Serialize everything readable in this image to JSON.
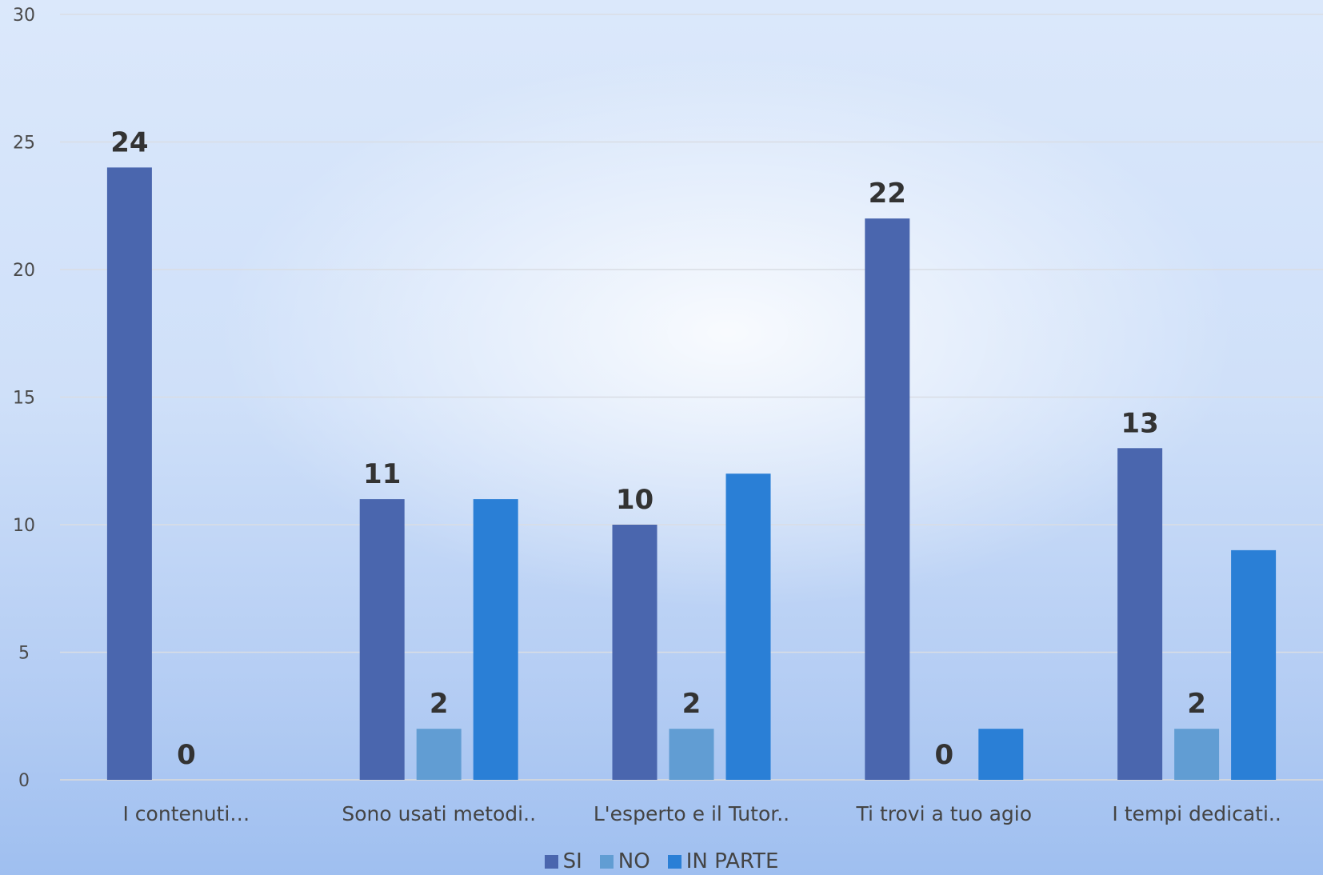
{
  "chart_data": {
    "type": "bar",
    "categories": [
      "I contenuti…",
      "Sono usati metodi..",
      "L'esperto e il Tutor..",
      "Ti trovi a tuo agio",
      "I tempi dedicati.."
    ],
    "series": [
      {
        "name": "SI",
        "values": [
          24,
          11,
          10,
          22,
          13
        ],
        "color": "#4a66ae",
        "show_labels": true
      },
      {
        "name": "NO",
        "values": [
          0,
          2,
          2,
          0,
          2
        ],
        "color": "#619dd3",
        "show_labels": true
      },
      {
        "name": "IN PARTE",
        "values": [
          null,
          11,
          12,
          2,
          9
        ],
        "color": "#2a7fd6",
        "show_labels": false
      }
    ],
    "ylim": [
      0,
      30
    ],
    "yticks": [
      0,
      5,
      10,
      15,
      20,
      25,
      30
    ],
    "grid": true,
    "legend_position": "bottom",
    "title": "",
    "xlabel": "",
    "ylabel": ""
  }
}
